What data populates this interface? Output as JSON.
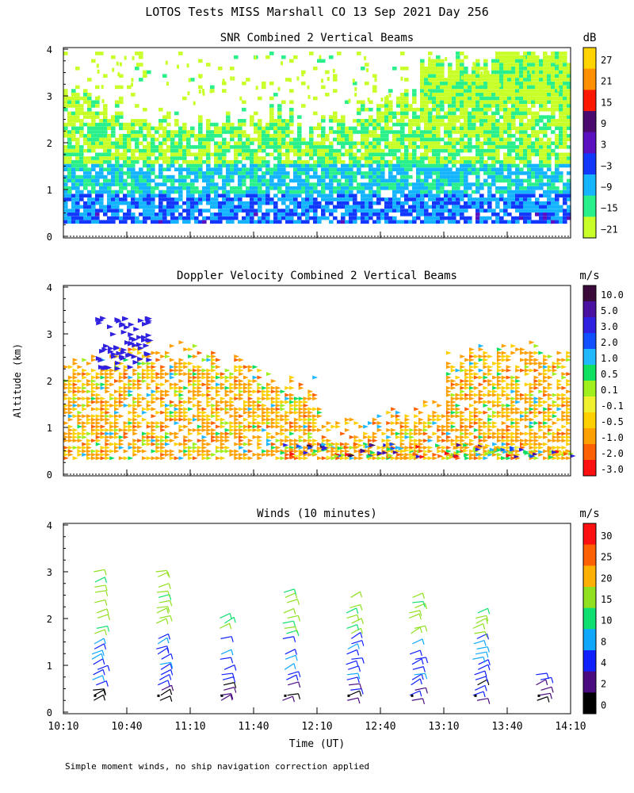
{
  "figure_title": "LOTOS Tests MISS Marshall CO  13 Sep 2021 Day 256",
  "footnote": "Simple moment winds, no ship navigation correction applied",
  "chart_data": [
    {
      "type": "heatmap",
      "title": "SNR Combined 2 Vertical Beams",
      "xlabel": "",
      "ylabel": "",
      "xlim": [
        "10:10",
        "14:10"
      ],
      "ylim": [
        0,
        4
      ],
      "yticks": [
        "0",
        "1",
        "2",
        "3",
        "4"
      ],
      "colorbar": {
        "unit": "dB",
        "labels": [
          "27",
          "21",
          "15",
          "9",
          "3",
          "−3",
          "−9",
          "−15",
          "−21"
        ],
        "colors": [
          "#ffd400",
          "#ff9000",
          "#ff1800",
          "#4a0a6e",
          "#5a10c0",
          "#1238ff",
          "#14b4ff",
          "#2af08c",
          "#c8ff28"
        ]
      }
    },
    {
      "type": "heatmap",
      "title": "Doppler Velocity Combined 2 Vertical Beams",
      "xlabel": "",
      "ylabel": "Altitude (km)",
      "xlim": [
        "10:10",
        "14:10"
      ],
      "ylim": [
        0,
        4
      ],
      "yticks": [
        "0",
        "1",
        "2",
        "3",
        "4"
      ],
      "colorbar": {
        "unit": "m/s",
        "labels": [
          "10.0",
          "5.0",
          "3.0",
          "2.0",
          "1.0",
          "0.5",
          "0.1",
          "-0.1",
          "-0.5",
          "-1.0",
          "-2.0",
          "-3.0"
        ],
        "colors": [
          "#3a0a3a",
          "#4a10a0",
          "#3020e0",
          "#1050ff",
          "#20b8ff",
          "#10e060",
          "#a0f020",
          "#f0f030",
          "#ffd000",
          "#ffa000",
          "#ff6000",
          "#ff1010"
        ]
      }
    },
    {
      "type": "scatter",
      "title": "Winds (10 minutes)",
      "xlabel": "Time (UT)",
      "ylabel": "",
      "xlim": [
        "10:10",
        "14:10"
      ],
      "ylim": [
        0,
        4
      ],
      "yticks": [
        "0",
        "1",
        "2",
        "3",
        "4"
      ],
      "xticks": [
        "10:10",
        "10:40",
        "11:10",
        "11:40",
        "12:10",
        "12:40",
        "13:10",
        "13:40",
        "14:10"
      ],
      "profile_times": [
        "10:25",
        "10:55",
        "11:25",
        "11:55",
        "12:25",
        "12:55",
        "13:25",
        "13:55"
      ],
      "colorbar": {
        "unit": "m/s",
        "labels": [
          "30",
          "25",
          "20",
          "15",
          "10",
          "8",
          "4",
          "2",
          "0"
        ],
        "colors": [
          "#ff1010",
          "#ff6000",
          "#ffb000",
          "#90e020",
          "#10e070",
          "#10a8ff",
          "#1020ff",
          "#4a0a80",
          "#000000"
        ]
      }
    }
  ]
}
